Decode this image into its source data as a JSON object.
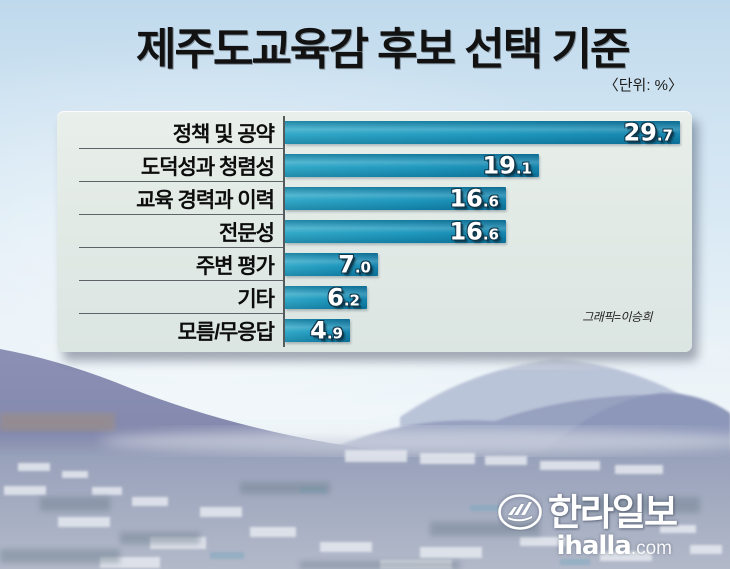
{
  "title": "제주도교육감 후보 선택 기준",
  "unit_label": "〈단위: %〉",
  "credit": "그래픽=이승희",
  "chart_data": {
    "type": "bar",
    "orientation": "horizontal",
    "title": "제주도교육감 후보 선택 기준",
    "unit": "%",
    "categories": [
      "정책 및 공약",
      "도덕성과 청렴성",
      "교육 경력과 이력",
      "전문성",
      "주변 평가",
      "기타",
      "모름/무응답"
    ],
    "values": [
      29.7,
      19.1,
      16.6,
      16.6,
      7.0,
      6.2,
      4.9
    ],
    "value_labels": [
      "29.7",
      "19.1",
      "16.6",
      "16.6",
      "7.0",
      "6.2",
      "4.9"
    ],
    "xlim": [
      0,
      30
    ],
    "grid": false,
    "legend": false,
    "value_label_position": "inside-right"
  },
  "colors": {
    "bar_gradient_start": "#2ba6c6",
    "bar_gradient_mid": "#1795bc",
    "bar_gradient_end": "#0d80aa",
    "panel_background": "#e2eae6",
    "title_text": "#121212",
    "value_text": "#ffffff",
    "value_outline": "#10384c"
  },
  "logo": {
    "newspaper_name": "한라일보",
    "website_bold": "ihalla",
    "website_suffix": ".com",
    "emblem": "halla-mountain-emblem-icon"
  }
}
